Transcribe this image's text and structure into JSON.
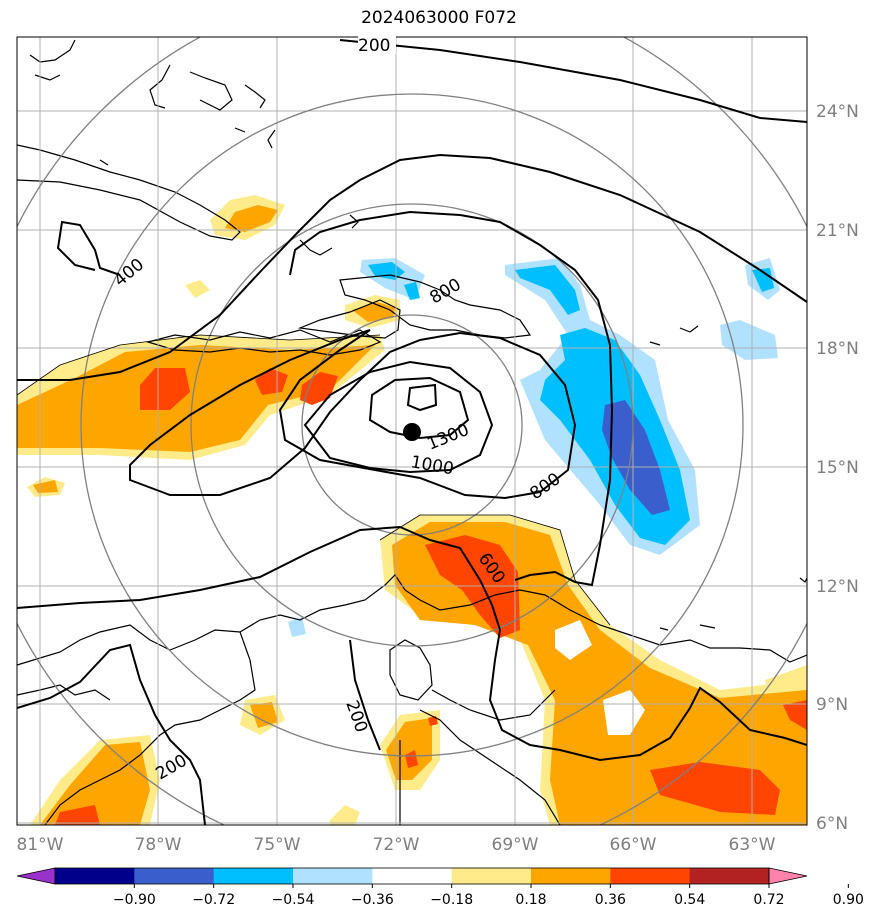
{
  "title": "2024063000 F072",
  "lon_ticks": [
    "81°W",
    "78°W",
    "75°W",
    "72°W",
    "69°W",
    "66°W",
    "63°W"
  ],
  "lat_ticks": [
    "24°N",
    "21°N",
    "18°N",
    "15°N",
    "12°N",
    "9°N",
    "6°N"
  ],
  "contour_labels": [
    "200",
    "400",
    "800",
    "1300",
    "1000",
    "800",
    "600",
    "200",
    "200"
  ],
  "colorbar": {
    "ticks": [
      "−0.90",
      "−0.72",
      "−0.54",
      "−0.36",
      "−0.18",
      "0.18",
      "0.36",
      "0.54",
      "0.72",
      "0.90"
    ],
    "colors": [
      "#9932cc",
      "#00008b",
      "#3a5fcd",
      "#00bfff",
      "#b0e2ff",
      "#ffffff",
      "#ffeb8a",
      "#ffa500",
      "#ff4500",
      "#b22222",
      "#ff82ab"
    ]
  },
  "colors": {
    "orange": "#ffa500",
    "red_orange": "#ff4500",
    "light_yellow": "#ffeb8a",
    "deep_sky": "#00bfff",
    "light_sky": "#b0e2ff",
    "royal_blue": "#3a5fcd",
    "grid": "#b0b0b0",
    "range_ring": "#808080"
  },
  "storm_center": {
    "lon": "-71.6",
    "lat": "15.9"
  }
}
